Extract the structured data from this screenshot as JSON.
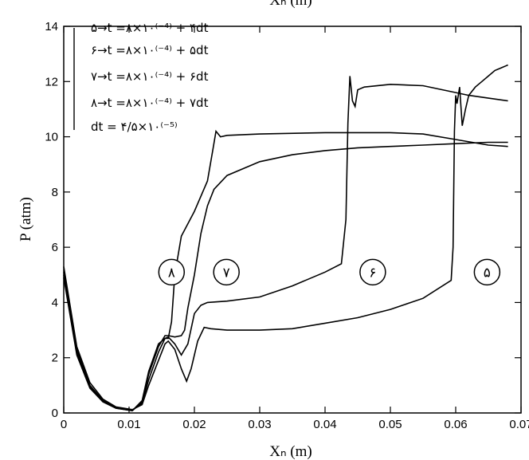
{
  "chart_data": {
    "type": "line",
    "top_label": "Xₙ (m)",
    "xlabel": "Xₙ (m)",
    "ylabel": "P (atm)",
    "xlim": [
      0,
      0.07
    ],
    "ylim": [
      0,
      14
    ],
    "grid": false,
    "legend_position": "top-left",
    "x_ticks": [
      {
        "value": 0,
        "label": "0"
      },
      {
        "value": 0.01,
        "label": "0.01"
      },
      {
        "value": 0.02,
        "label": "0.02"
      },
      {
        "value": 0.03,
        "label": "0.03"
      },
      {
        "value": 0.04,
        "label": "0.04"
      },
      {
        "value": 0.05,
        "label": "0.05"
      },
      {
        "value": 0.06,
        "label": "0.06"
      },
      {
        "value": 0.07,
        "label": "0.07"
      }
    ],
    "y_ticks": [
      {
        "value": 0,
        "label": "0"
      },
      {
        "value": 2,
        "label": "2"
      },
      {
        "value": 4,
        "label": "4"
      },
      {
        "value": 6,
        "label": "6"
      },
      {
        "value": 8,
        "label": "8"
      },
      {
        "value": 10,
        "label": "10"
      },
      {
        "value": 12,
        "label": "12"
      },
      {
        "value": 14,
        "label": "14"
      }
    ],
    "legend": [
      "۵→t =۸×۱۰⁽⁻⁴⁾ + ۴dt",
      "۶→t =۸×۱۰⁽⁻⁴⁾ + ۵dt",
      "۷→t =۸×۱۰⁽⁻⁴⁾ + ۶dt",
      "۸→t =۸×۱۰⁽⁻⁴⁾ + ۷dt",
      "dt = ۴/۵×۱۰⁽⁻⁵⁾"
    ],
    "curve_labels": [
      {
        "text": "۸",
        "x": 0.0165,
        "y": 5.1
      },
      {
        "text": "۷",
        "x": 0.0249,
        "y": 5.1
      },
      {
        "text": "۶",
        "x": 0.0473,
        "y": 5.1
      },
      {
        "text": "۵",
        "x": 0.0648,
        "y": 5.1
      }
    ],
    "series": [
      {
        "curve": "۵",
        "points": [
          [
            0,
            5.3
          ],
          [
            0.002,
            2.4
          ],
          [
            0.004,
            1.1
          ],
          [
            0.006,
            0.5
          ],
          [
            0.008,
            0.22
          ],
          [
            0.0105,
            0.12
          ],
          [
            0.012,
            0.3
          ],
          [
            0.013,
            1.0
          ],
          [
            0.0145,
            1.9
          ],
          [
            0.0155,
            2.5
          ],
          [
            0.016,
            2.6
          ],
          [
            0.017,
            2.3
          ],
          [
            0.018,
            1.6
          ],
          [
            0.0188,
            1.15
          ],
          [
            0.0195,
            1.6
          ],
          [
            0.0205,
            2.6
          ],
          [
            0.0215,
            3.1
          ],
          [
            0.0225,
            3.05
          ],
          [
            0.025,
            3.0
          ],
          [
            0.03,
            3.0
          ],
          [
            0.035,
            3.05
          ],
          [
            0.04,
            3.25
          ],
          [
            0.045,
            3.45
          ],
          [
            0.05,
            3.75
          ],
          [
            0.055,
            4.15
          ],
          [
            0.0593,
            4.8
          ],
          [
            0.0596,
            6.0
          ],
          [
            0.0598,
            10.2
          ],
          [
            0.06,
            11.5
          ],
          [
            0.0602,
            11.2
          ],
          [
            0.0606,
            11.8
          ],
          [
            0.061,
            10.4
          ],
          [
            0.0615,
            11.0
          ],
          [
            0.062,
            11.5
          ],
          [
            0.063,
            11.8
          ],
          [
            0.064,
            12.0
          ],
          [
            0.065,
            12.2
          ],
          [
            0.066,
            12.4
          ],
          [
            0.067,
            12.5
          ],
          [
            0.068,
            12.6
          ]
        ]
      },
      {
        "curve": "۶",
        "points": [
          [
            0,
            5.1
          ],
          [
            0.002,
            2.3
          ],
          [
            0.004,
            1.0
          ],
          [
            0.006,
            0.45
          ],
          [
            0.008,
            0.2
          ],
          [
            0.0105,
            0.1
          ],
          [
            0.012,
            0.35
          ],
          [
            0.013,
            1.2
          ],
          [
            0.0145,
            2.2
          ],
          [
            0.0155,
            2.7
          ],
          [
            0.016,
            2.75
          ],
          [
            0.017,
            2.5
          ],
          [
            0.018,
            2.1
          ],
          [
            0.019,
            2.5
          ],
          [
            0.02,
            3.6
          ],
          [
            0.021,
            3.9
          ],
          [
            0.022,
            4.0
          ],
          [
            0.025,
            4.05
          ],
          [
            0.03,
            4.2
          ],
          [
            0.035,
            4.6
          ],
          [
            0.04,
            5.1
          ],
          [
            0.0425,
            5.4
          ],
          [
            0.0432,
            7.0
          ],
          [
            0.0435,
            10.5
          ],
          [
            0.0438,
            12.2
          ],
          [
            0.0442,
            11.3
          ],
          [
            0.0446,
            11.1
          ],
          [
            0.045,
            11.7
          ],
          [
            0.046,
            11.8
          ],
          [
            0.05,
            11.9
          ],
          [
            0.055,
            11.85
          ],
          [
            0.06,
            11.6
          ],
          [
            0.062,
            11.5
          ],
          [
            0.065,
            11.4
          ],
          [
            0.068,
            11.3
          ]
        ]
      },
      {
        "curve": "۷",
        "points": [
          [
            0,
            5.0
          ],
          [
            0.002,
            2.2
          ],
          [
            0.004,
            0.95
          ],
          [
            0.006,
            0.42
          ],
          [
            0.008,
            0.18
          ],
          [
            0.0105,
            0.08
          ],
          [
            0.012,
            0.4
          ],
          [
            0.013,
            1.4
          ],
          [
            0.0145,
            2.4
          ],
          [
            0.0155,
            2.8
          ],
          [
            0.016,
            2.8
          ],
          [
            0.017,
            2.75
          ],
          [
            0.018,
            2.8
          ],
          [
            0.0185,
            3.0
          ],
          [
            0.019,
            3.8
          ],
          [
            0.02,
            5.0
          ],
          [
            0.021,
            6.5
          ],
          [
            0.022,
            7.5
          ],
          [
            0.023,
            8.1
          ],
          [
            0.025,
            8.6
          ],
          [
            0.03,
            9.1
          ],
          [
            0.035,
            9.35
          ],
          [
            0.04,
            9.5
          ],
          [
            0.045,
            9.6
          ],
          [
            0.05,
            9.65
          ],
          [
            0.055,
            9.7
          ],
          [
            0.06,
            9.75
          ],
          [
            0.065,
            9.8
          ],
          [
            0.068,
            9.8
          ]
        ]
      },
      {
        "curve": "۸",
        "points": [
          [
            0,
            4.9
          ],
          [
            0.002,
            2.1
          ],
          [
            0.004,
            0.9
          ],
          [
            0.006,
            0.4
          ],
          [
            0.008,
            0.17
          ],
          [
            0.0105,
            0.08
          ],
          [
            0.012,
            0.45
          ],
          [
            0.013,
            1.5
          ],
          [
            0.0145,
            2.5
          ],
          [
            0.0155,
            2.7
          ],
          [
            0.016,
            2.7
          ],
          [
            0.0165,
            3.3
          ],
          [
            0.017,
            5.0
          ],
          [
            0.018,
            6.4
          ],
          [
            0.02,
            7.3
          ],
          [
            0.022,
            8.4
          ],
          [
            0.0228,
            9.5
          ],
          [
            0.0233,
            10.2
          ],
          [
            0.024,
            10.0
          ],
          [
            0.025,
            10.05
          ],
          [
            0.03,
            10.1
          ],
          [
            0.04,
            10.15
          ],
          [
            0.05,
            10.15
          ],
          [
            0.055,
            10.1
          ],
          [
            0.06,
            9.9
          ],
          [
            0.065,
            9.7
          ],
          [
            0.068,
            9.65
          ]
        ]
      }
    ]
  }
}
